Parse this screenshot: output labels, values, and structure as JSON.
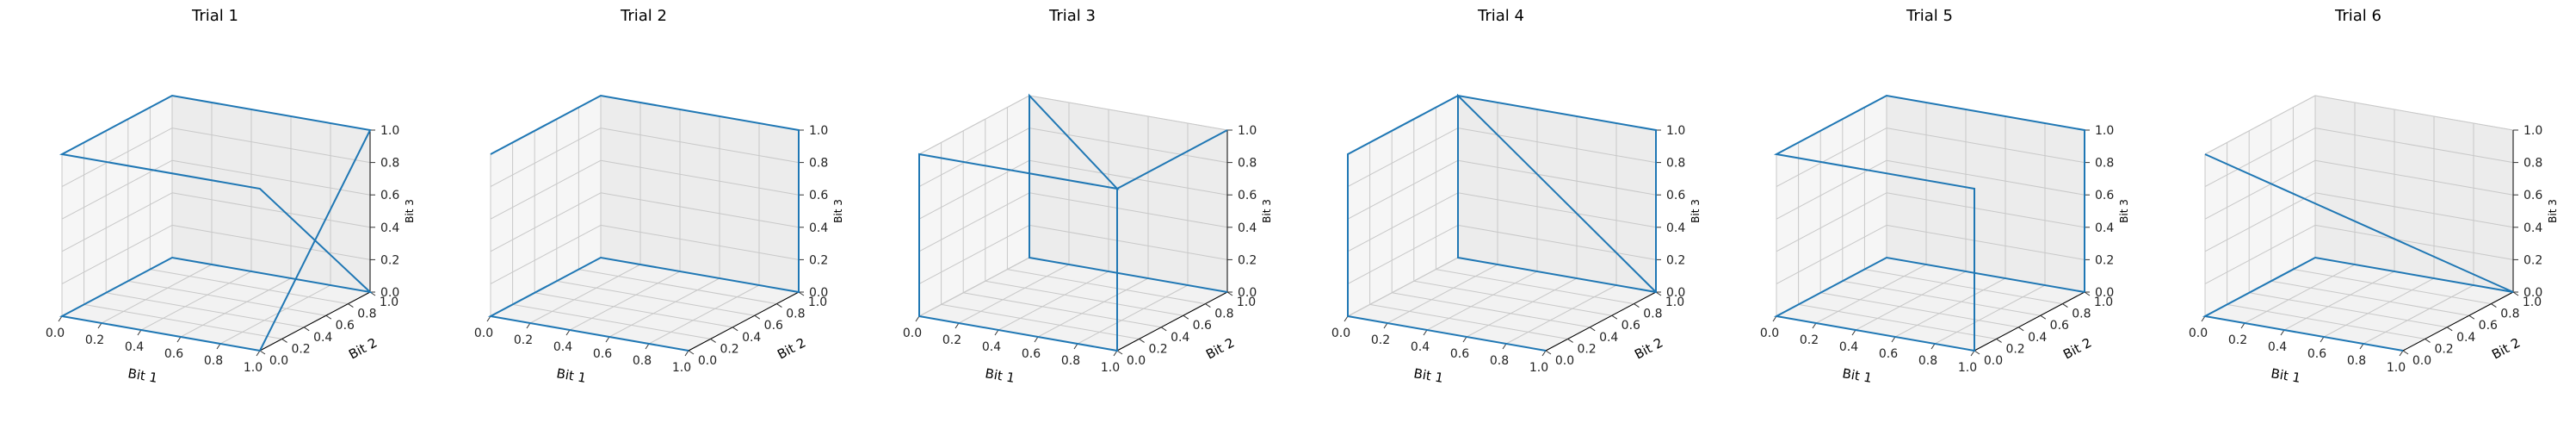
{
  "colors": {
    "line": "#1f77b4",
    "pane": "#f2f2f2",
    "grid": "#c8c8c8"
  },
  "chart_data": [
    {
      "type": "line3d",
      "title": "Trial 1",
      "xlabel": "Bit 1",
      "ylabel": "Bit 2",
      "zlabel": "Bit 3",
      "xlim": [
        0,
        1
      ],
      "ylim": [
        0,
        1
      ],
      "zlim": [
        0,
        1
      ],
      "x_ticks": [
        "0.0",
        "0.2",
        "0.4",
        "0.6",
        "0.8",
        "1.0"
      ],
      "y_ticks": [
        "0.0",
        "0.2",
        "0.4",
        "0.6",
        "0.8",
        "1.0"
      ],
      "z_ticks": [
        "0.0",
        "0.2",
        "0.4",
        "0.6",
        "0.8",
        "1.0"
      ],
      "grid": true,
      "series": [
        {
          "x": [
            1,
            0,
            0,
            1,
            1,
            0,
            0,
            1,
            1
          ],
          "y": [
            0,
            0,
            1,
            1,
            0,
            0,
            1,
            1,
            0
          ],
          "z": [
            0,
            0,
            0,
            0,
            1,
            1,
            1,
            1,
            0
          ]
        }
      ]
    },
    {
      "type": "line3d",
      "title": "Trial 2",
      "xlabel": "Bit 1",
      "ylabel": "Bit 2",
      "zlabel": "Bit 3",
      "xlim": [
        0,
        1
      ],
      "ylim": [
        0,
        1
      ],
      "zlim": [
        0,
        1
      ],
      "x_ticks": [
        "0.0",
        "0.2",
        "0.4",
        "0.6",
        "0.8",
        "1.0"
      ],
      "y_ticks": [
        "0.0",
        "0.2",
        "0.4",
        "0.6",
        "0.8",
        "1.0"
      ],
      "z_ticks": [
        "0.0",
        "0.2",
        "0.4",
        "0.6",
        "0.8",
        "1.0"
      ],
      "grid": true,
      "series": [
        {
          "x": [
            1,
            0,
            0,
            1,
            1,
            0,
            0,
            0,
            1
          ],
          "y": [
            0,
            0,
            1,
            1,
            1,
            1,
            0,
            1,
            1
          ],
          "z": [
            0,
            0,
            0,
            0,
            1,
            1,
            1,
            1,
            1
          ]
        }
      ]
    },
    {
      "type": "line3d",
      "title": "Trial 3",
      "xlabel": "Bit 1",
      "ylabel": "Bit 2",
      "zlabel": "Bit 3",
      "xlim": [
        0,
        1
      ],
      "ylim": [
        0,
        1
      ],
      "zlim": [
        0,
        1
      ],
      "x_ticks": [
        "0.0",
        "0.2",
        "0.4",
        "0.6",
        "0.8",
        "1.0"
      ],
      "y_ticks": [
        "0.0",
        "0.2",
        "0.4",
        "0.6",
        "0.8",
        "1.0"
      ],
      "z_ticks": [
        "0.0",
        "0.2",
        "0.4",
        "0.6",
        "0.8",
        "1.0"
      ],
      "grid": true,
      "series": [
        {
          "x": [
            1,
            1,
            1,
            0,
            0,
            0,
            1,
            0,
            0,
            1
          ],
          "y": [
            1,
            0,
            0,
            0,
            0,
            0,
            0,
            1,
            1,
            1
          ],
          "z": [
            1,
            1,
            0,
            0,
            0,
            1,
            1,
            1,
            0,
            0
          ]
        }
      ]
    },
    {
      "type": "line3d",
      "title": "Trial 4",
      "xlabel": "Bit 1",
      "ylabel": "Bit 2",
      "zlabel": "Bit 3",
      "xlim": [
        0,
        1
      ],
      "ylim": [
        0,
        1
      ],
      "zlim": [
        0,
        1
      ],
      "x_ticks": [
        "0.0",
        "0.2",
        "0.4",
        "0.6",
        "0.8",
        "1.0"
      ],
      "y_ticks": [
        "0.0",
        "0.2",
        "0.4",
        "0.6",
        "0.8",
        "1.0"
      ],
      "z_ticks": [
        "0.0",
        "0.2",
        "0.4",
        "0.6",
        "0.8",
        "1.0"
      ],
      "grid": true,
      "series": [
        {
          "x": [
            1,
            0,
            0,
            0,
            0,
            1,
            1,
            0,
            0,
            1
          ],
          "y": [
            0,
            0,
            0,
            0,
            1,
            1,
            1,
            1,
            1,
            1
          ],
          "z": [
            0,
            0,
            0,
            1,
            1,
            1,
            0,
            0,
            1,
            0
          ]
        }
      ]
    },
    {
      "type": "line3d",
      "title": "Trial 5",
      "xlabel": "Bit 1",
      "ylabel": "Bit 2",
      "zlabel": "Bit 3",
      "xlim": [
        0,
        1
      ],
      "ylim": [
        0,
        1
      ],
      "zlim": [
        0,
        1
      ],
      "x_ticks": [
        "0.0",
        "0.2",
        "0.4",
        "0.6",
        "0.8",
        "1.0"
      ],
      "y_ticks": [
        "0.0",
        "0.2",
        "0.4",
        "0.6",
        "0.8",
        "1.0"
      ],
      "z_ticks": [
        "0.0",
        "0.2",
        "0.4",
        "0.6",
        "0.8",
        "1.0"
      ],
      "grid": true,
      "series": [
        {
          "x": [
            1,
            1,
            0,
            0,
            1,
            1,
            0,
            0,
            1
          ],
          "y": [
            1,
            1,
            1,
            0,
            0,
            0,
            0,
            1,
            1
          ],
          "z": [
            0,
            1,
            1,
            1,
            1,
            0,
            0,
            0,
            0
          ]
        }
      ]
    },
    {
      "type": "line3d",
      "title": "Trial 6",
      "xlabel": "Bit 1",
      "ylabel": "Bit 2",
      "zlabel": "Bit 3",
      "xlim": [
        0,
        1
      ],
      "ylim": [
        0,
        1
      ],
      "zlim": [
        0,
        1
      ],
      "x_ticks": [
        "0.0",
        "0.2",
        "0.4",
        "0.6",
        "0.8",
        "1.0"
      ],
      "y_ticks": [
        "0.0",
        "0.2",
        "0.4",
        "0.6",
        "0.8",
        "1.0"
      ],
      "z_ticks": [
        "0.0",
        "0.2",
        "0.4",
        "0.6",
        "0.8",
        "1.0"
      ],
      "grid": true,
      "series": [
        {
          "x": [
            0,
            0,
            1,
            0,
            0,
            1,
            1
          ],
          "y": [
            0,
            0,
            1,
            1,
            0,
            0,
            0
          ],
          "z": [
            1,
            1,
            0,
            0,
            0,
            0,
            0
          ]
        }
      ]
    }
  ]
}
